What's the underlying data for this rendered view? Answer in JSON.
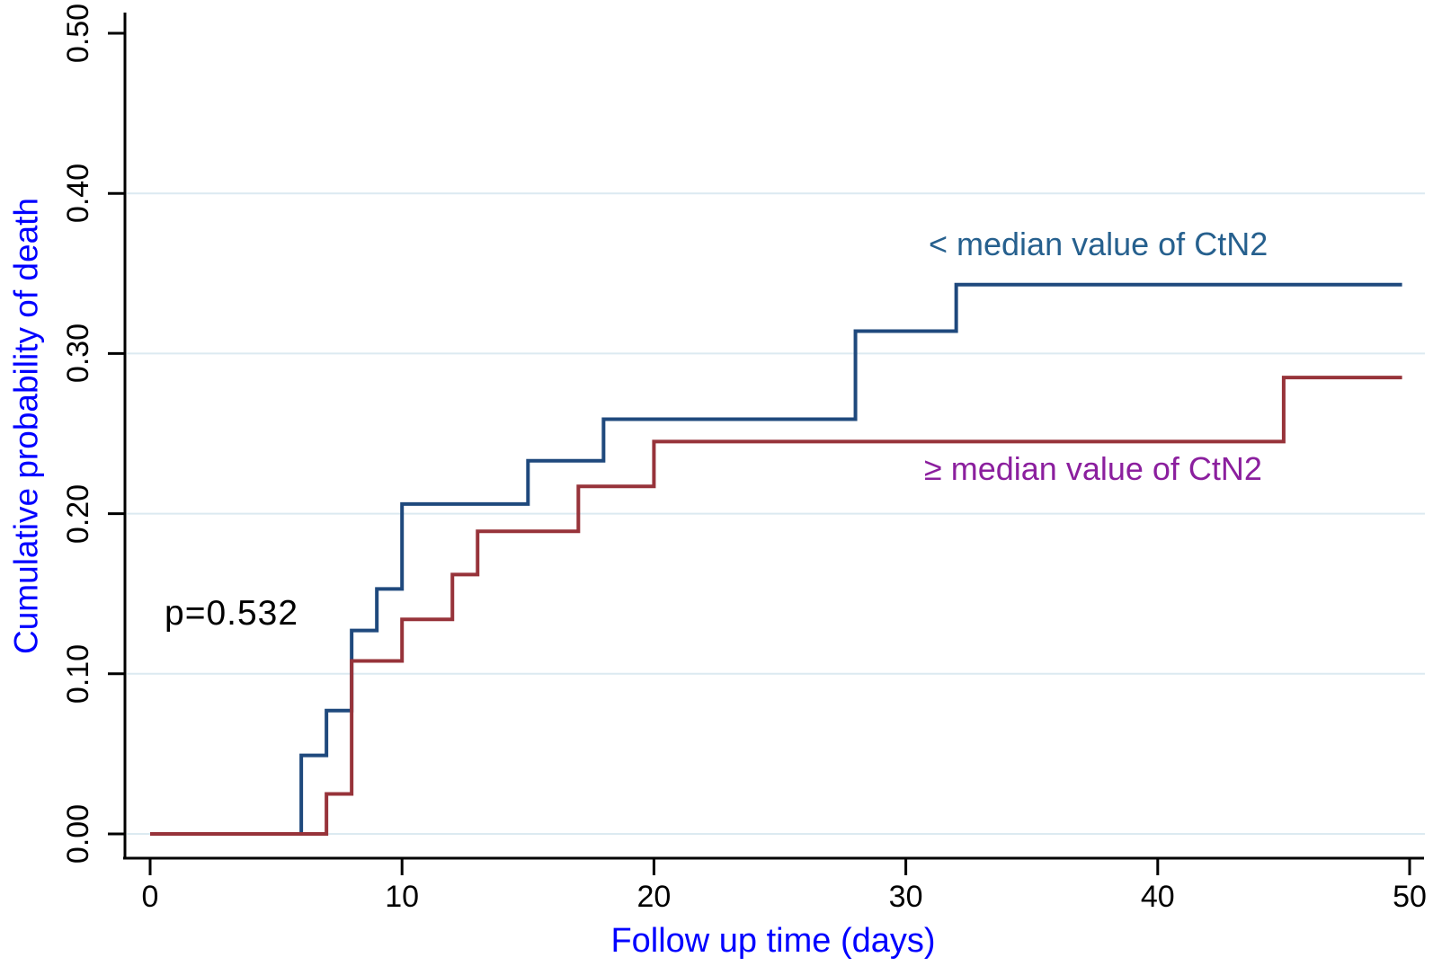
{
  "chart_data": {
    "type": "line",
    "variant": "kaplan-meier-cumulative-incidence-steps",
    "title": "",
    "xlabel": "Follow up time (days)",
    "ylabel": "Cumulative probability of death",
    "xlim": [
      0,
      50
    ],
    "ylim": [
      0.0,
      0.5
    ],
    "x_tick_values": [
      0,
      10,
      20,
      30,
      40,
      50
    ],
    "x_tick_labels": [
      "0",
      "10",
      "20",
      "30",
      "40",
      "50"
    ],
    "y_tick_values": [
      0.0,
      0.1,
      0.2,
      0.3,
      0.4,
      0.5
    ],
    "y_tick_labels": [
      "0.00",
      "0.10",
      "0.20",
      "0.30",
      "0.40",
      "0.50"
    ],
    "grid": {
      "horizontal_at": [
        0.0,
        0.1,
        0.2,
        0.3,
        0.4
      ],
      "color": "#dceaf1"
    },
    "legend_position": "inline-curve-labels",
    "annotations": [
      {
        "text": "p=0.532",
        "color": "#000000",
        "near_day": 1,
        "near_value": 0.13
      }
    ],
    "series": [
      {
        "name": "< median value of CtN2",
        "line_color": "#1F497D",
        "label_color": "#26608E",
        "steps_day_value": [
          [
            0,
            0.0
          ],
          [
            6,
            0.049
          ],
          [
            7,
            0.077
          ],
          [
            8,
            0.127
          ],
          [
            9,
            0.153
          ],
          [
            10,
            0.206
          ],
          [
            15,
            0.233
          ],
          [
            18,
            0.259
          ],
          [
            28,
            0.314
          ],
          [
            32,
            0.343
          ],
          [
            49.7,
            0.343
          ]
        ]
      },
      {
        "name": "≥ median value of CtN2",
        "line_color": "#97333A",
        "label_color": "#8B1F9E",
        "steps_day_value": [
          [
            0,
            0.0
          ],
          [
            7,
            0.025
          ],
          [
            8,
            0.108
          ],
          [
            10,
            0.134
          ],
          [
            12,
            0.162
          ],
          [
            13,
            0.189
          ],
          [
            17,
            0.217
          ],
          [
            20,
            0.245
          ],
          [
            45,
            0.285
          ],
          [
            49.7,
            0.285
          ]
        ]
      }
    ]
  },
  "colors": {
    "axis_title": "#0000FF",
    "tick_label": "#000000",
    "axis_line": "#000000",
    "background": "#FFFFFF"
  }
}
